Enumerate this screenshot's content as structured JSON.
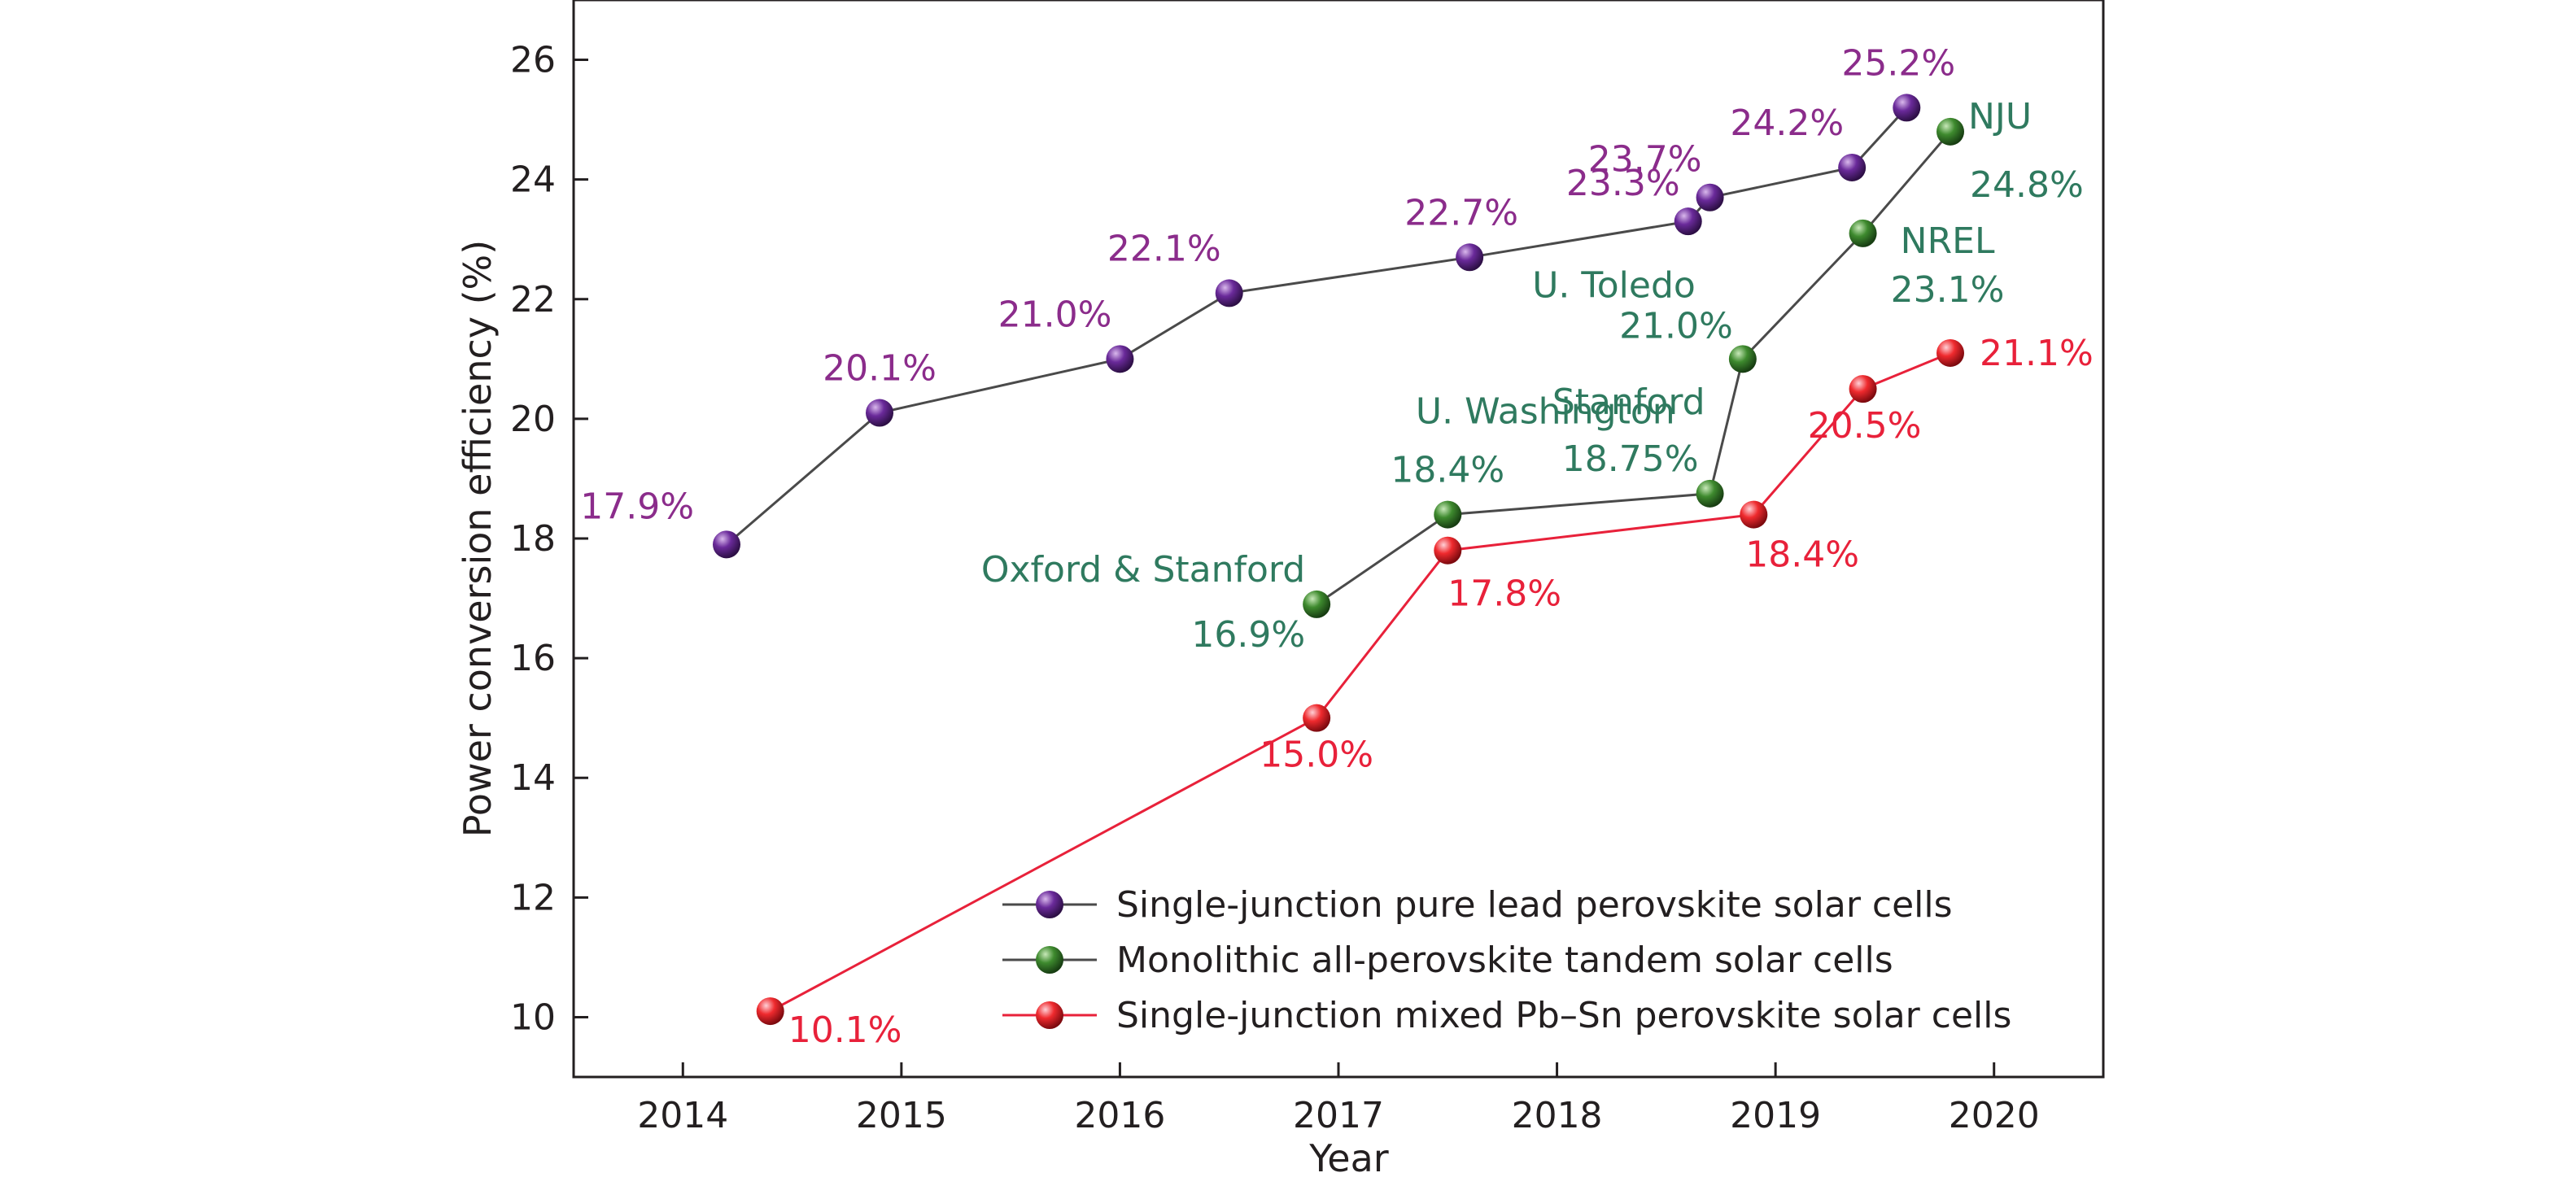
{
  "chart_data": {
    "type": "line",
    "xlabel": "Year",
    "ylabel": "Power conversion efficiency (%)",
    "xlim": [
      2013.5,
      2020.5
    ],
    "ylim": [
      9.0,
      27.0
    ],
    "x_ticks": [
      2014,
      2015,
      2016,
      2017,
      2018,
      2019,
      2020
    ],
    "y_ticks": [
      10,
      12,
      14,
      16,
      18,
      20,
      22,
      24,
      26
    ],
    "grid": false,
    "legend_position": "bottom-right",
    "series": [
      {
        "name": "Single-junction pure lead perovskite solar cells",
        "color": "#8b2c8b",
        "marker_color": "#6a2a9a",
        "points": [
          {
            "x": 2014.2,
            "y": 17.9,
            "label": "17.9%",
            "org": ""
          },
          {
            "x": 2014.9,
            "y": 20.1,
            "label": "20.1%",
            "org": ""
          },
          {
            "x": 2016.0,
            "y": 21.0,
            "label": "21.0%",
            "org": ""
          },
          {
            "x": 2016.5,
            "y": 22.1,
            "label": "22.1%",
            "org": ""
          },
          {
            "x": 2017.6,
            "y": 22.7,
            "label": "22.7%",
            "org": ""
          },
          {
            "x": 2018.6,
            "y": 23.3,
            "label": "23.3%",
            "org": ""
          },
          {
            "x": 2018.7,
            "y": 23.7,
            "label": "23.7%",
            "org": ""
          },
          {
            "x": 2019.35,
            "y": 24.2,
            "label": "24.2%",
            "org": ""
          },
          {
            "x": 2019.6,
            "y": 25.2,
            "label": "25.2%",
            "org": ""
          }
        ]
      },
      {
        "name": "Monolithic all-perovskite tandem solar cells",
        "color": "#2f7a5f",
        "marker_color": "#3e8a2e",
        "points": [
          {
            "x": 2016.9,
            "y": 16.9,
            "label": "16.9%",
            "org": "Oxford & Stanford"
          },
          {
            "x": 2017.5,
            "y": 18.4,
            "label": "18.4%",
            "org": "U. Washington"
          },
          {
            "x": 2018.7,
            "y": 18.75,
            "label": "18.75%",
            "org": "Stanford"
          },
          {
            "x": 2018.85,
            "y": 21.0,
            "label": "21.0%",
            "org": "U. Toledo"
          },
          {
            "x": 2019.4,
            "y": 23.1,
            "label": "23.1%",
            "org": "NREL"
          },
          {
            "x": 2019.8,
            "y": 24.8,
            "label": "24.8%",
            "org": "NJU"
          }
        ]
      },
      {
        "name": "Single-junction mixed Pb–Sn perovskite solar cells",
        "color": "#e8213a",
        "marker_color": "#e8213a",
        "points": [
          {
            "x": 2014.4,
            "y": 10.1,
            "label": "10.1%",
            "org": ""
          },
          {
            "x": 2016.9,
            "y": 15.0,
            "label": "15.0%",
            "org": ""
          },
          {
            "x": 2017.5,
            "y": 17.8,
            "label": "17.8%",
            "org": ""
          },
          {
            "x": 2018.9,
            "y": 18.4,
            "label": "18.4%",
            "org": ""
          },
          {
            "x": 2019.4,
            "y": 20.5,
            "label": "20.5%",
            "org": ""
          },
          {
            "x": 2019.8,
            "y": 21.1,
            "label": "21.1%",
            "org": ""
          }
        ]
      }
    ]
  }
}
